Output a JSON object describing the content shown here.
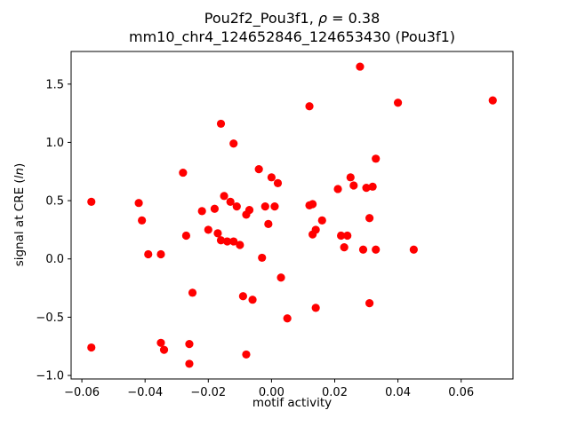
{
  "figure": {
    "title_prefix": "Pou2f2_Pou3f1, ",
    "title_rho": "ρ",
    "title_suffix": " = 0.38",
    "subtitle": "mm10_chr4_124652846_124653430 (Pou3f1)",
    "xlabel": "motif activity",
    "ylabel_prefix": "signal at CRE (",
    "ylabel_italic": "ln",
    "ylabel_suffix": ")"
  },
  "chart_data": {
    "type": "scatter",
    "title": "Pou2f2_Pou3f1, ρ = 0.38",
    "subtitle": "mm10_chr4_124652846_124653430 (Pou3f1)",
    "xlabel": "motif activity",
    "ylabel": "signal at CRE (ln)",
    "legend": "none",
    "grid": false,
    "marker_color": "#ff0000",
    "marker_radius": 4.6,
    "xlim": [
      -0.0634,
      0.0764
    ],
    "ylim": [
      -1.03,
      1.78
    ],
    "x_ticks": [
      -0.06,
      -0.04,
      -0.02,
      0.0,
      0.02,
      0.04,
      0.06
    ],
    "x_tick_labels": [
      "−0.06",
      "−0.04",
      "−0.02",
      "0.00",
      "0.02",
      "0.04",
      "0.06"
    ],
    "y_ticks": [
      -1.0,
      -0.5,
      0.0,
      0.5,
      1.0,
      1.5
    ],
    "y_tick_labels": [
      "−1.0",
      "−0.5",
      "0.0",
      "0.5",
      "1.0",
      "1.5"
    ],
    "points": [
      [
        -0.057,
        -0.76
      ],
      [
        -0.057,
        0.49
      ],
      [
        -0.042,
        0.48
      ],
      [
        -0.041,
        0.33
      ],
      [
        -0.039,
        0.04
      ],
      [
        -0.035,
        0.04
      ],
      [
        -0.035,
        -0.72
      ],
      [
        -0.034,
        -0.78
      ],
      [
        -0.028,
        0.74
      ],
      [
        -0.027,
        0.2
      ],
      [
        -0.026,
        -0.73
      ],
      [
        -0.026,
        -0.9
      ],
      [
        -0.025,
        -0.29
      ],
      [
        -0.022,
        0.41
      ],
      [
        -0.02,
        0.25
      ],
      [
        -0.018,
        0.43
      ],
      [
        -0.017,
        0.22
      ],
      [
        -0.016,
        1.16
      ],
      [
        -0.016,
        0.16
      ],
      [
        -0.015,
        0.54
      ],
      [
        -0.014,
        0.15
      ],
      [
        -0.013,
        0.49
      ],
      [
        -0.012,
        0.99
      ],
      [
        -0.012,
        0.15
      ],
      [
        -0.011,
        0.45
      ],
      [
        -0.01,
        0.12
      ],
      [
        -0.009,
        -0.32
      ],
      [
        -0.008,
        0.38
      ],
      [
        -0.008,
        -0.82
      ],
      [
        -0.007,
        0.42
      ],
      [
        -0.006,
        -0.35
      ],
      [
        -0.004,
        0.77
      ],
      [
        -0.003,
        0.01
      ],
      [
        -0.002,
        0.45
      ],
      [
        -0.001,
        0.3
      ],
      [
        0.0,
        0.7
      ],
      [
        0.001,
        0.45
      ],
      [
        0.002,
        0.65
      ],
      [
        0.003,
        -0.16
      ],
      [
        0.005,
        -0.51
      ],
      [
        0.012,
        1.31
      ],
      [
        0.012,
        0.46
      ],
      [
        0.013,
        0.47
      ],
      [
        0.013,
        0.21
      ],
      [
        0.014,
        0.25
      ],
      [
        0.014,
        -0.42
      ],
      [
        0.016,
        0.33
      ],
      [
        0.021,
        0.6
      ],
      [
        0.022,
        0.2
      ],
      [
        0.023,
        0.1
      ],
      [
        0.024,
        0.2
      ],
      [
        0.025,
        0.7
      ],
      [
        0.026,
        0.63
      ],
      [
        0.028,
        1.65
      ],
      [
        0.029,
        0.08
      ],
      [
        0.03,
        0.61
      ],
      [
        0.031,
        0.35
      ],
      [
        0.031,
        -0.38
      ],
      [
        0.032,
        0.62
      ],
      [
        0.033,
        0.86
      ],
      [
        0.033,
        0.08
      ],
      [
        0.04,
        1.34
      ],
      [
        0.045,
        0.08
      ],
      [
        0.07,
        1.36
      ]
    ]
  }
}
